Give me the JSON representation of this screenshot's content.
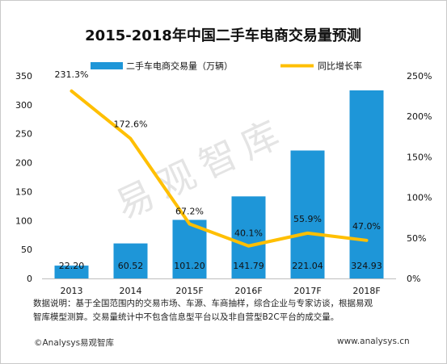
{
  "chart_data": {
    "type": "bar",
    "title": "2015-2018年中国二手车电商交易量预测",
    "categories": [
      "2013",
      "2014",
      "2015F",
      "2016F",
      "2017F",
      "2018F"
    ],
    "series": [
      {
        "name": "二手车电商交易量（万辆）",
        "type": "bar",
        "axis": "left",
        "values": [
          22.2,
          60.52,
          101.2,
          141.79,
          221.04,
          324.93
        ],
        "labels": [
          "22.20",
          "60.52",
          "101.20",
          "141.79",
          "221.04",
          "324.93"
        ]
      },
      {
        "name": "同比增长率",
        "type": "line",
        "axis": "right",
        "values": [
          231.3,
          172.6,
          67.2,
          40.1,
          55.9,
          47.0
        ],
        "labels": [
          "231.3%",
          "172.6%",
          "67.2%",
          "40.1%",
          "55.9%",
          "47.0%"
        ]
      }
    ],
    "ylim": [
      0,
      350
    ],
    "yticks": [
      "0",
      "50",
      "100",
      "150",
      "200",
      "250",
      "300",
      "350"
    ],
    "y2lim": [
      0,
      250
    ],
    "y2ticks": [
      "0%",
      "50%",
      "100%",
      "150%",
      "200%",
      "250%"
    ],
    "legend": "top-center",
    "grid": false
  },
  "colors": {
    "bar": "#1e96d8",
    "line": "#ffbf00",
    "watermark": "#e4e4e4"
  },
  "watermark": "易观智库",
  "source_note": {
    "line1": "数据说明：基于全国范围内的交易市场、车源、车商抽样，综合企业与专家访谈，根据易观",
    "line2": "智库模型测算。交易量统计中不包含信息型平台以及非自营型B2C平台的成交量。"
  },
  "footer": {
    "copyright": "©Analysys易观智库",
    "website": "www.analysys.cn"
  }
}
